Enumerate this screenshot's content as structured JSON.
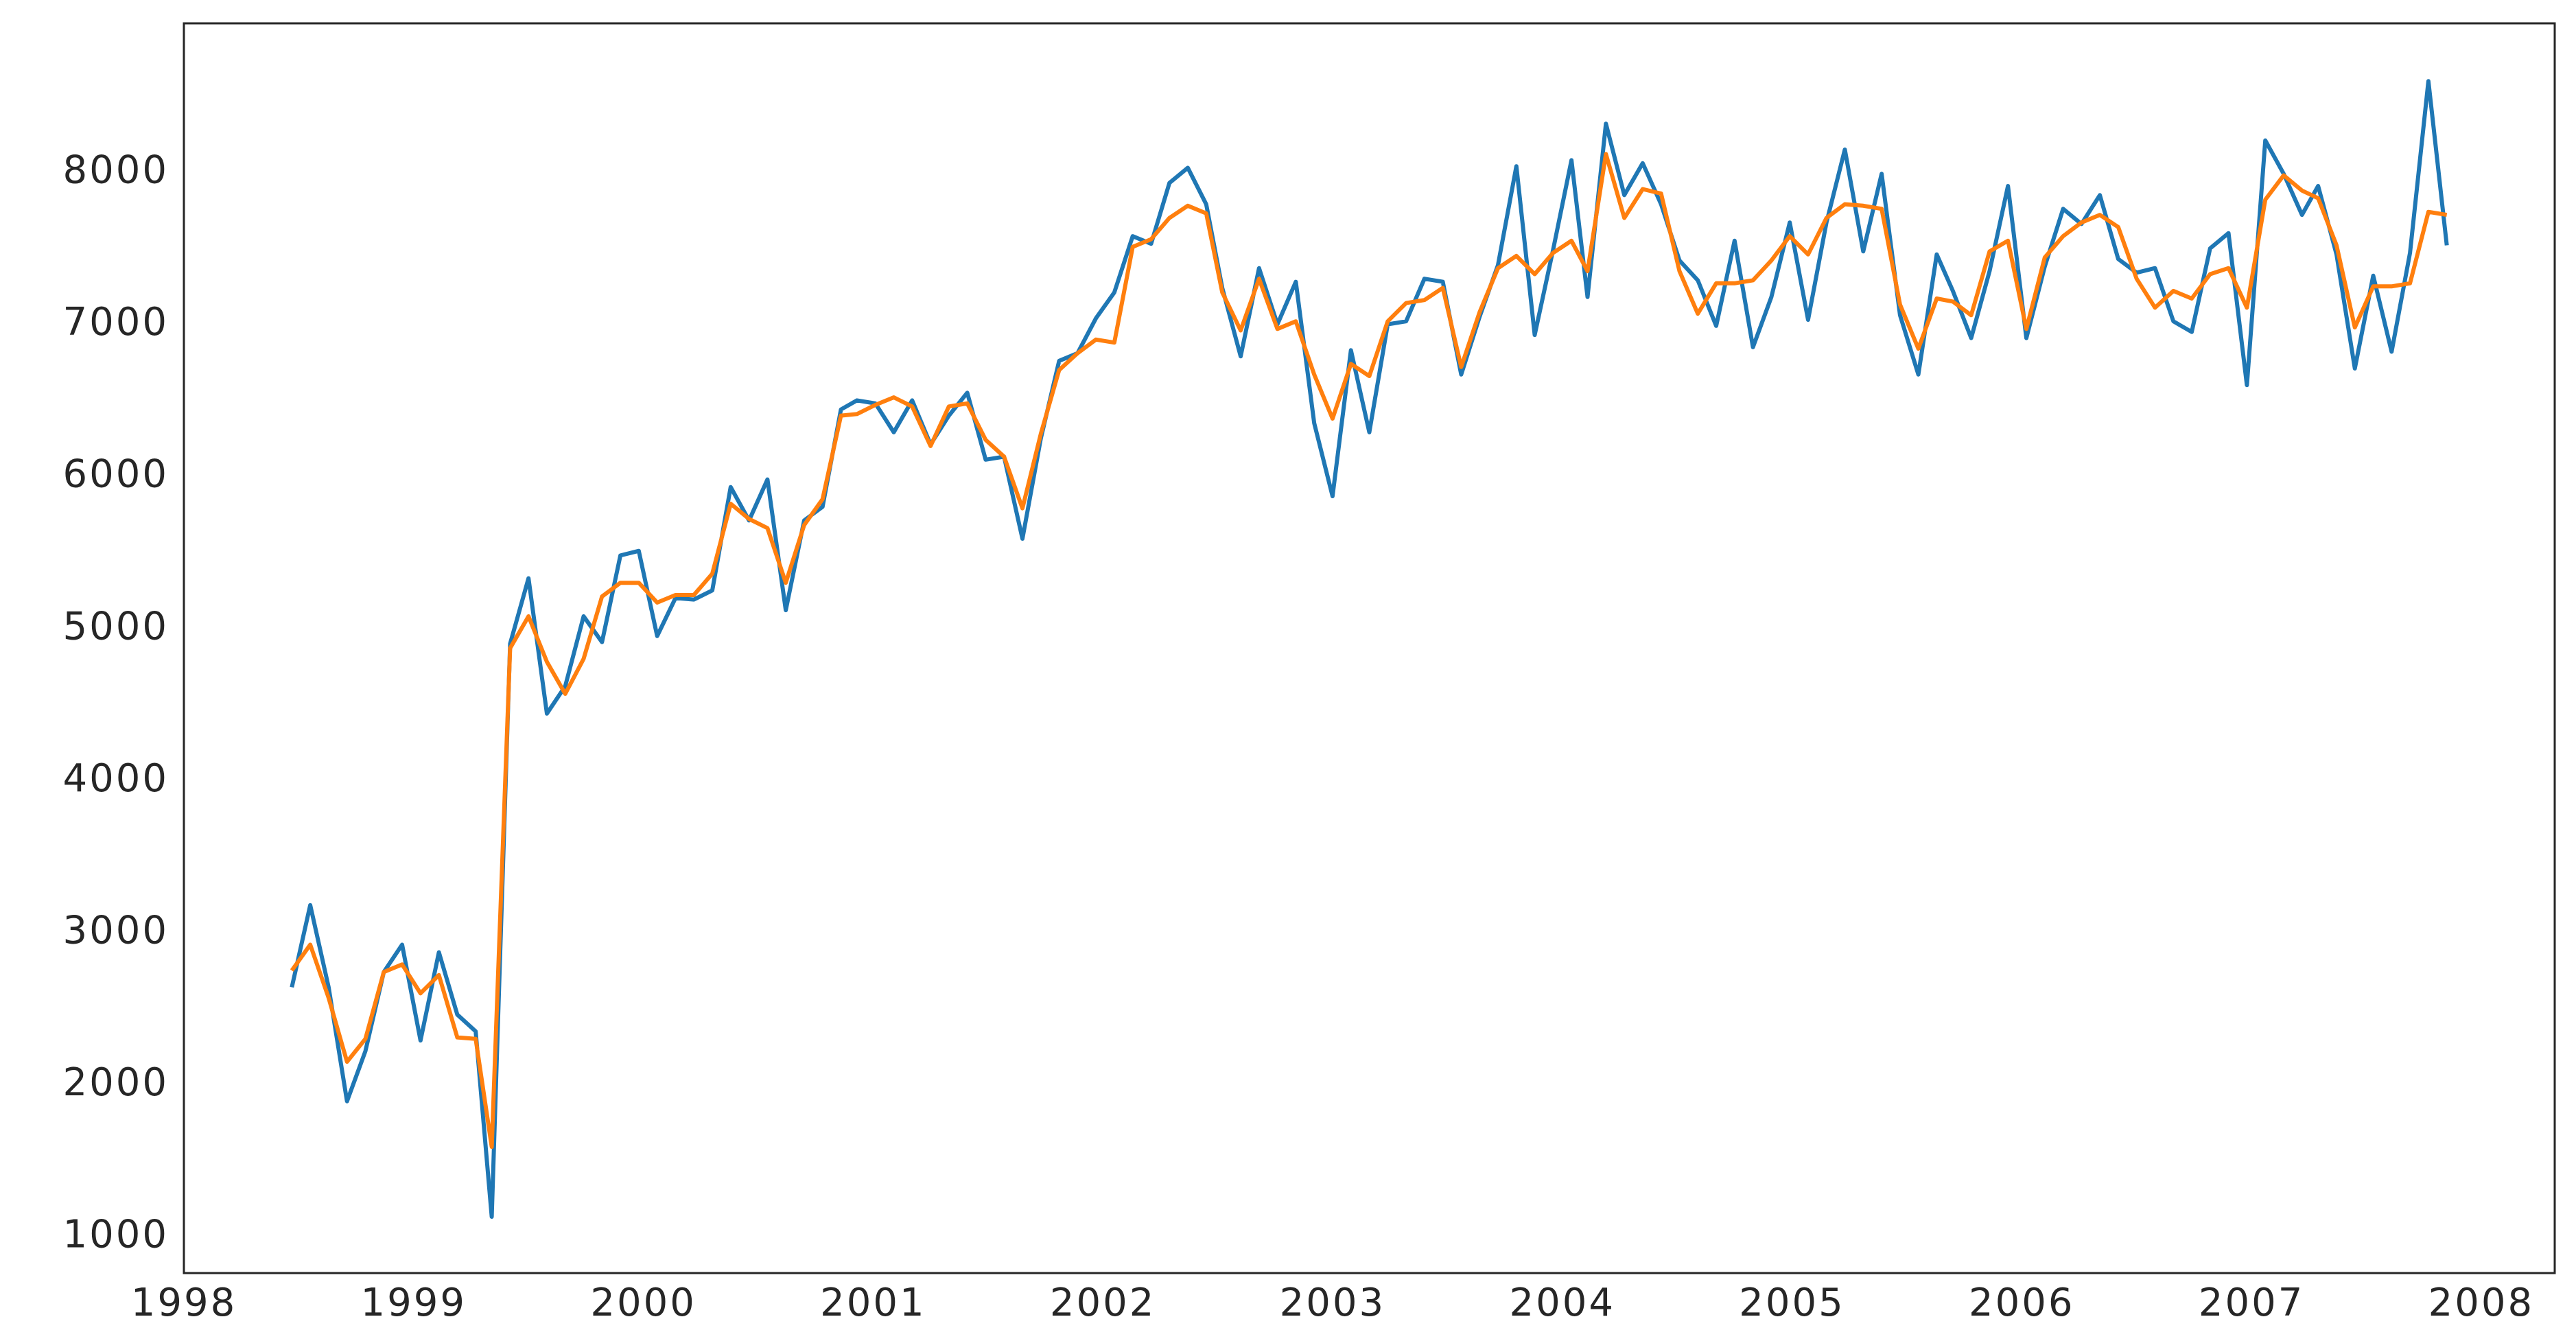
{
  "chart_data": {
    "type": "line",
    "x": [
      1998.47,
      1998.55,
      1998.63,
      1998.71,
      1998.79,
      1998.87,
      1998.95,
      1999.03,
      1999.11,
      1999.19,
      1999.27,
      1999.34,
      1999.42,
      1999.5,
      1999.58,
      1999.66,
      1999.74,
      1999.82,
      1999.9,
      1999.98,
      2000.06,
      2000.14,
      2000.22,
      2000.3,
      2000.38,
      2000.46,
      2000.54,
      2000.62,
      2000.7,
      2000.78,
      2000.86,
      2000.93,
      2001.01,
      2001.09,
      2001.17,
      2001.25,
      2001.33,
      2001.41,
      2001.49,
      2001.57,
      2001.65,
      2001.73,
      2001.81,
      2001.89,
      2001.97,
      2002.05,
      2002.13,
      2002.21,
      2002.29,
      2002.37,
      2002.45,
      2002.52,
      2002.6,
      2002.68,
      2002.76,
      2002.84,
      2002.92,
      2003.0,
      2003.08,
      2003.16,
      2003.24,
      2003.32,
      2003.4,
      2003.48,
      2003.56,
      2003.64,
      2003.72,
      2003.8,
      2003.88,
      2003.96,
      2004.04,
      2004.11,
      2004.19,
      2004.27,
      2004.35,
      2004.43,
      2004.51,
      2004.59,
      2004.67,
      2004.75,
      2004.83,
      2004.91,
      2004.99,
      2005.07,
      2005.15,
      2005.23,
      2005.31,
      2005.39,
      2005.47,
      2005.55,
      2005.63,
      2005.7,
      2005.78,
      2005.86,
      2005.94,
      2006.02,
      2006.1,
      2006.18,
      2006.26,
      2006.34,
      2006.42,
      2006.5,
      2006.58,
      2006.66,
      2006.74,
      2006.82,
      2006.9,
      2006.98,
      2007.06,
      2007.14,
      2007.22,
      2007.29,
      2007.37,
      2007.45,
      2007.53,
      2007.61,
      2007.69,
      2007.77,
      2007.85
    ],
    "series": [
      {
        "color": "#1f77b4",
        "values": [
          2620,
          3160,
          2620,
          1870,
          2200,
          2720,
          2900,
          2270,
          2850,
          2440,
          2330,
          1110,
          4880,
          5310,
          4420,
          4600,
          5060,
          4890,
          5460,
          5490,
          4930,
          5180,
          5170,
          5230,
          5910,
          5690,
          5960,
          5100,
          5690,
          5780,
          6420,
          6480,
          6460,
          6270,
          6480,
          6190,
          6380,
          6530,
          6090,
          6110,
          5570,
          6230,
          6740,
          6790,
          7020,
          7190,
          7560,
          7510,
          7910,
          8010,
          7770,
          7220,
          6770,
          7350,
          6980,
          7260,
          6330,
          5850,
          6810,
          6270,
          6980,
          7000,
          7280,
          7260,
          6650,
          7030,
          7370,
          8020,
          6910,
          7470,
          8060,
          7160,
          8300,
          7830,
          8040,
          7770,
          7400,
          7270,
          6970,
          7530,
          6830,
          7160,
          7650,
          7010,
          7650,
          8130,
          7460,
          7970,
          7040,
          6650,
          7440,
          7200,
          6890,
          7330,
          7890,
          6890,
          7360,
          7740,
          7640,
          7830,
          7410,
          7320,
          7350,
          7000,
          6930,
          7480,
          7580,
          6580,
          8190,
          7970,
          7700,
          7890,
          7440,
          6690,
          7300,
          6800,
          7450,
          8580,
          7500
        ]
      },
      {
        "color": "#ff7f0e",
        "values": [
          2730,
          2900,
          2550,
          2130,
          2280,
          2720,
          2770,
          2580,
          2700,
          2290,
          2280,
          1570,
          4850,
          5060,
          4760,
          4550,
          4780,
          5190,
          5280,
          5280,
          5150,
          5200,
          5200,
          5340,
          5800,
          5700,
          5640,
          5280,
          5660,
          5830,
          6380,
          6390,
          6450,
          6500,
          6440,
          6180,
          6440,
          6460,
          6220,
          6110,
          5770,
          6260,
          6680,
          6790,
          6880,
          6860,
          7490,
          7540,
          7680,
          7760,
          7710,
          7190,
          6940,
          7280,
          6950,
          7000,
          6650,
          6360,
          6720,
          6640,
          7000,
          7120,
          7140,
          7220,
          6700,
          7060,
          7350,
          7430,
          7310,
          7450,
          7530,
          7330,
          8100,
          7680,
          7870,
          7840,
          7330,
          7050,
          7250,
          7250,
          7270,
          7400,
          7560,
          7440,
          7680,
          7770,
          7760,
          7740,
          7110,
          6820,
          7150,
          7130,
          7040,
          7460,
          7530,
          6950,
          7420,
          7560,
          7650,
          7700,
          7620,
          7280,
          7090,
          7200,
          7150,
          7310,
          7350,
          7090,
          7800,
          7960,
          7860,
          7810,
          7500,
          6960,
          7230,
          7230,
          7250,
          7720,
          7700
        ]
      }
    ],
    "xlim": [
      1998,
      2008.32
    ],
    "xticks": [
      1998,
      1999,
      2000,
      2001,
      2002,
      2003,
      2004,
      2005,
      2006,
      2007,
      2008
    ],
    "ylim": [
      740,
      8960
    ],
    "yticks": [
      1000,
      2000,
      3000,
      4000,
      5000,
      6000,
      7000,
      8000
    ],
    "grid": false
  }
}
